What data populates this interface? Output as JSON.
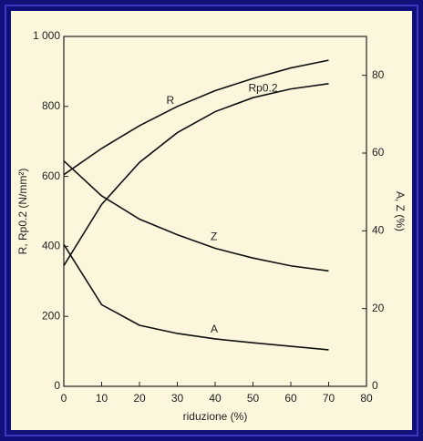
{
  "chart_data": {
    "type": "line",
    "x_label": "riduzione (%)",
    "y_label": "R, Rp0.2 (N/mm²)",
    "y2_label": "A, Z (%)",
    "x": [
      0,
      10,
      20,
      30,
      40,
      50,
      60,
      70
    ],
    "xlim": [
      0,
      80
    ],
    "xticks": [
      0,
      10,
      20,
      30,
      40,
      50,
      60,
      70,
      80
    ],
    "ylim": [
      0,
      1000
    ],
    "yticks": [
      0,
      200,
      400,
      600,
      800,
      {
        "value": 1000,
        "label": "1 000"
      }
    ],
    "y2lim": [
      0,
      90
    ],
    "y2ticks": [
      0,
      20,
      40,
      60,
      80
    ],
    "series": [
      {
        "name": "R",
        "color": "#111111",
        "values": [
          605,
          680,
          745,
          800,
          845,
          880,
          910,
          932
        ]
      },
      {
        "name": "Rp0.2",
        "color": "#111111",
        "values": [
          345,
          520,
          640,
          725,
          785,
          825,
          850,
          865
        ]
      },
      {
        "name": "Z",
        "color": "#111111",
        "axis": "y2",
        "values": [
          58,
          49,
          43,
          39,
          35.5,
          33,
          31,
          29.7
        ]
      },
      {
        "name": "A",
        "color": "#111111",
        "axis": "y2",
        "values": [
          36.5,
          21,
          15.7,
          13.6,
          12.2,
          11.2,
          10.3,
          9.4
        ]
      }
    ]
  }
}
